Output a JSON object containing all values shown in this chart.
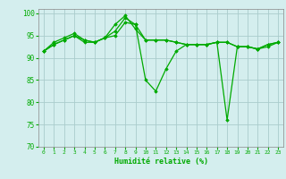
{
  "title": "",
  "xlabel": "Humidité relative (%)",
  "ylabel": "",
  "background_color": "#d4eeee",
  "grid_color": "#aacccc",
  "line_color": "#00aa00",
  "marker_color": "#00aa00",
  "xlim": [
    -0.5,
    23.5
  ],
  "ylim": [
    70,
    101
  ],
  "yticks": [
    70,
    75,
    80,
    85,
    90,
    95,
    100
  ],
  "xticks": [
    0,
    1,
    2,
    3,
    4,
    5,
    6,
    7,
    8,
    9,
    10,
    11,
    12,
    13,
    14,
    15,
    16,
    17,
    18,
    19,
    20,
    21,
    22,
    23
  ],
  "series": [
    [
      91.5,
      93.5,
      94.5,
      95.5,
      94.0,
      93.5,
      94.5,
      96.0,
      99.0,
      97.5,
      85.0,
      82.5,
      87.5,
      91.5,
      93.0,
      93.0,
      93.0,
      93.5,
      76.0,
      92.5,
      92.5,
      92.0,
      93.0,
      93.5
    ],
    [
      91.5,
      93.0,
      94.0,
      95.0,
      93.5,
      93.5,
      94.5,
      97.5,
      99.5,
      96.5,
      94.0,
      94.0,
      94.0,
      93.5,
      93.0,
      93.0,
      93.0,
      93.5,
      93.5,
      92.5,
      92.5,
      92.0,
      93.0,
      93.5
    ],
    [
      91.5,
      93.0,
      94.0,
      95.0,
      94.0,
      93.5,
      94.5,
      95.0,
      98.0,
      97.5,
      94.0,
      94.0,
      94.0,
      93.5,
      93.0,
      93.0,
      93.0,
      93.5,
      93.5,
      92.5,
      92.5,
      92.0,
      92.5,
      93.5
    ]
  ]
}
